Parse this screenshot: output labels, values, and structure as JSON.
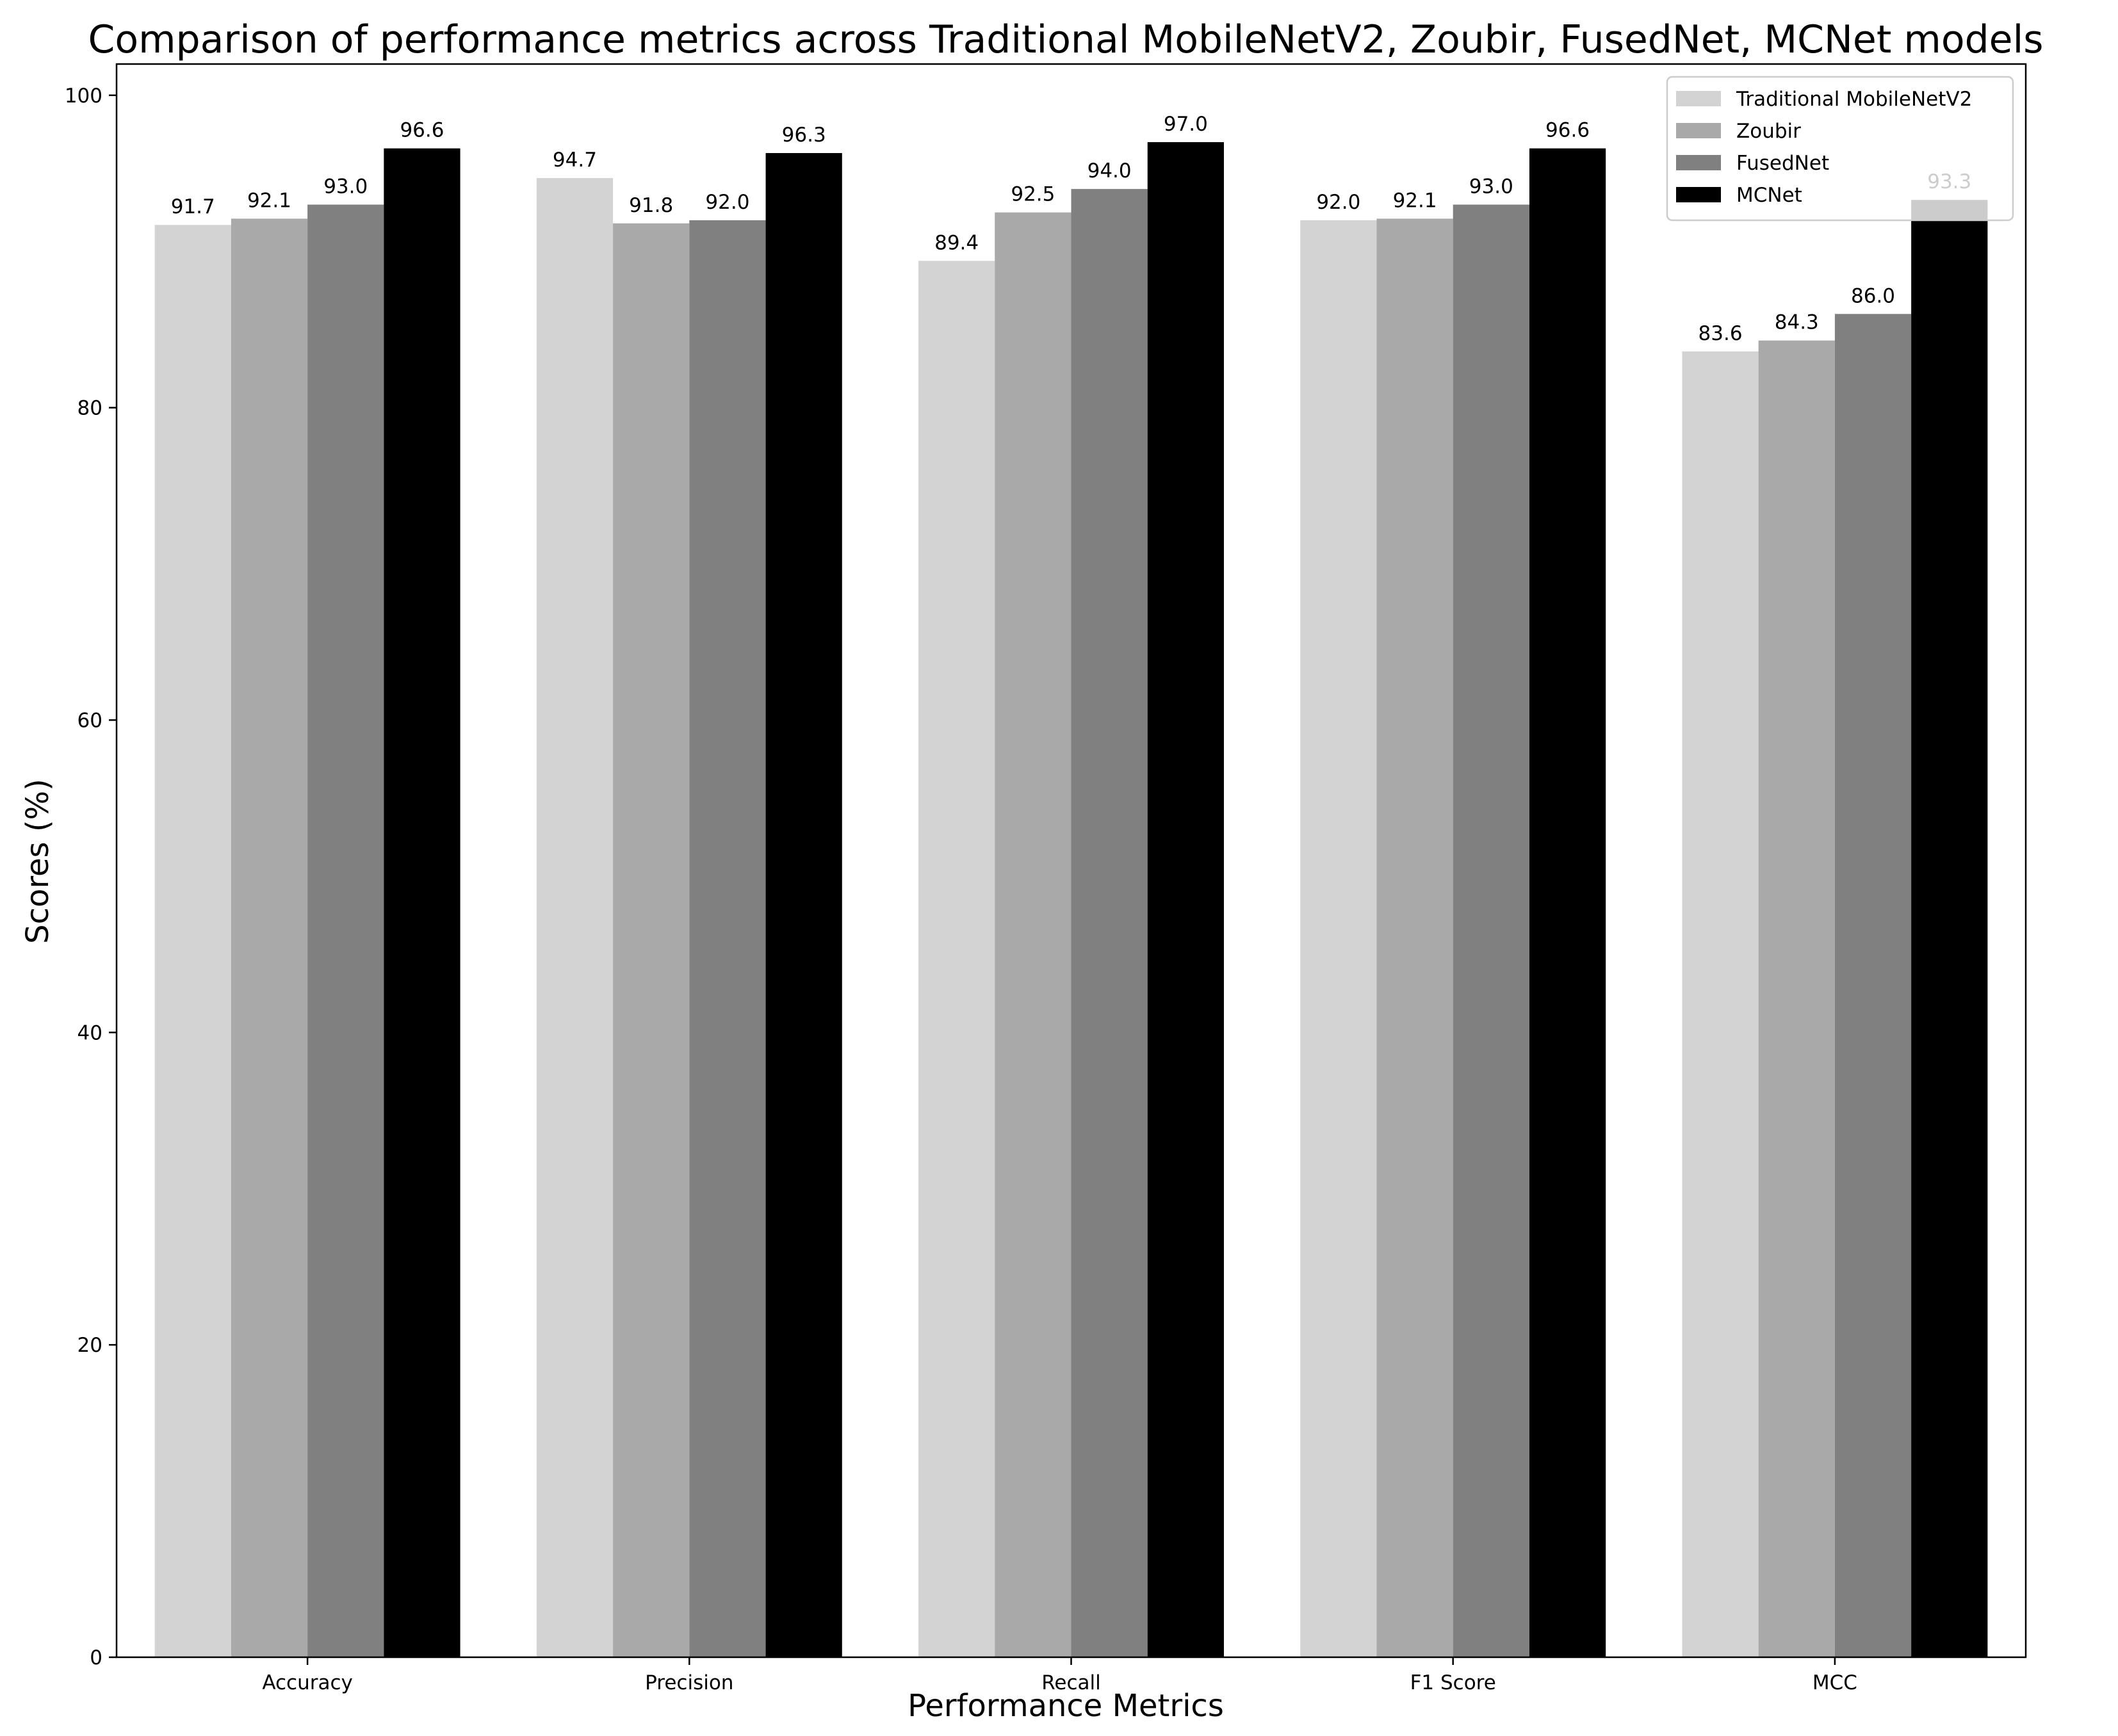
{
  "chart_data": {
    "type": "bar",
    "title": "Comparison of performance metrics across Traditional MobileNetV2, Zoubir, FusedNet, MCNet models",
    "xlabel": "Performance Metrics",
    "ylabel": "Scores (%)",
    "ylim": [
      0,
      102
    ],
    "yticks": [
      0,
      20,
      40,
      60,
      80,
      100
    ],
    "grid": false,
    "legend_position": "top-right",
    "categories": [
      "Accuracy",
      "Precision",
      "Recall",
      "F1 Score",
      "MCC"
    ],
    "series": [
      {
        "name": "Traditional MobileNetV2",
        "color": "#d3d3d3",
        "values": [
          91.7,
          94.7,
          89.4,
          92.0,
          83.6
        ],
        "labels": [
          "91.7",
          "94.7",
          "89.4",
          "92.0",
          "83.6"
        ]
      },
      {
        "name": "Zoubir",
        "color": "#a9a9a9",
        "values": [
          92.1,
          91.8,
          92.5,
          92.1,
          84.3
        ],
        "labels": [
          "92.1",
          "91.8",
          "92.5",
          "92.1",
          "84.3"
        ]
      },
      {
        "name": "FusedNet",
        "color": "#808080",
        "values": [
          93.0,
          92.0,
          94.0,
          93.0,
          86.0
        ],
        "labels": [
          "93.0",
          "92.0",
          "94.0",
          "93.0",
          "86.0"
        ]
      },
      {
        "name": "MCNet",
        "color": "#000000",
        "values": [
          96.6,
          96.3,
          97.0,
          96.6,
          93.3
        ],
        "labels": [
          "96.6",
          "96.3",
          "97.0",
          "96.6",
          "93.3"
        ]
      }
    ]
  }
}
